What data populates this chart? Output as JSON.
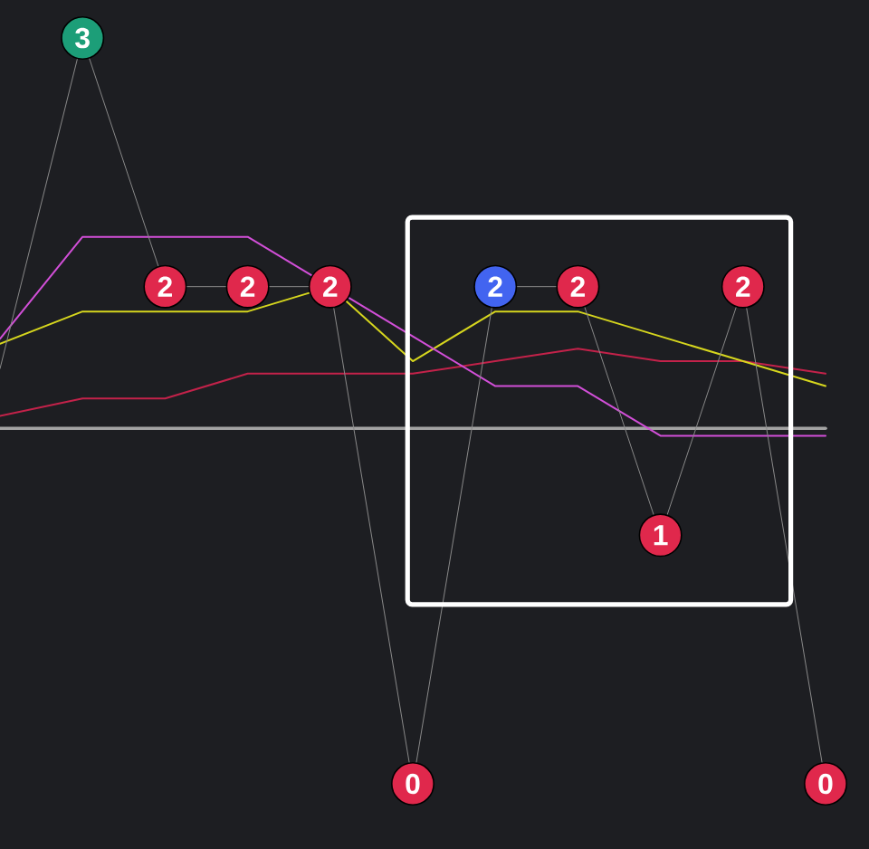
{
  "chart_data": {
    "type": "line",
    "tick_labels": false,
    "categories": [
      null,
      null,
      null,
      null,
      null,
      null,
      null,
      null,
      null,
      null,
      null
    ],
    "series": [
      {
        "color": "#a3a3a3",
        "values": [
          1.43,
          1.43,
          1.43,
          1.43,
          1.43,
          1.43,
          1.43,
          1.43,
          1.43,
          1.43,
          1.43
        ]
      },
      {
        "color": "#c3224a",
        "values": [
          1.48,
          1.55,
          1.55,
          1.65,
          1.65,
          1.65,
          1.7,
          1.75,
          1.7,
          1.7,
          1.65
        ]
      },
      {
        "color": "#d6d61e",
        "values": [
          1.77,
          1.9,
          1.9,
          1.9,
          2.0,
          1.7,
          1.9,
          1.9,
          1.8,
          1.7,
          1.6
        ]
      },
      {
        "color": "#d24fd8",
        "values": [
          1.79,
          2.2,
          2.2,
          2.2,
          2.0,
          1.8,
          1.6,
          1.6,
          1.4,
          1.4,
          1.4
        ]
      },
      {
        "color": "#8a8a8a",
        "marker": "circle",
        "values": [
          1.67,
          3,
          2,
          2,
          2,
          0,
          2,
          2,
          1,
          2,
          0
        ],
        "value_labels": [
          null,
          "3",
          "2",
          "2",
          "2",
          "0",
          "2",
          "2",
          "1",
          "2",
          "0"
        ],
        "colors": [
          null,
          "#1c9e78",
          "#e0284c",
          "#e0284c",
          "#e0284c",
          "#e0284c",
          "#4264f0",
          "#e0284c",
          "#e0284c",
          "#e0284c",
          "#e0284c"
        ]
      }
    ]
  }
}
